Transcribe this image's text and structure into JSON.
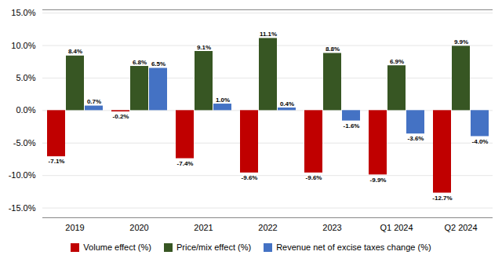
{
  "chart_data": {
    "type": "bar",
    "categories": [
      "2019",
      "2020",
      "2021",
      "2022",
      "2023",
      "Q1 2024",
      "Q2 2024"
    ],
    "series": [
      {
        "name": "Volume effect (%)",
        "color": "#C00000",
        "values": [
          -7.1,
          -0.2,
          -7.4,
          -9.6,
          -9.6,
          -9.9,
          -12.7
        ],
        "value_labels": [
          "-7.1%",
          "-0.2%",
          "-7.4%",
          "-9.6%",
          "-9.6%",
          "-9.9%",
          "-12.7%"
        ]
      },
      {
        "name": "Price/mix effect (%)",
        "color": "#375623",
        "values": [
          8.4,
          6.8,
          9.1,
          11.1,
          8.8,
          6.9,
          9.9
        ],
        "value_labels": [
          "8.4%",
          "6.8%",
          "9.1%",
          "11.1%",
          "8.8%",
          "6.9%",
          "9.9%"
        ]
      },
      {
        "name": "Revenue net of excise taxes change (%)",
        "color": "#4472C4",
        "values": [
          0.7,
          6.5,
          1.0,
          0.4,
          -1.6,
          -3.6,
          -4.0
        ],
        "value_labels": [
          "0.7%",
          "6.5%",
          "1.0%",
          "0.4%",
          "-1.6%",
          "-3.6%",
          "-4.0%"
        ]
      }
    ],
    "ylim": [
      -16.5,
      15.5
    ],
    "yticks": [
      {
        "value": -15.0,
        "label": "-15.0%"
      },
      {
        "value": -10.0,
        "label": "-10.0%"
      },
      {
        "value": -5.0,
        "label": "-5.0%"
      },
      {
        "value": 0.0,
        "label": "0.0%"
      },
      {
        "value": 5.0,
        "label": "5.0%"
      },
      {
        "value": 10.0,
        "label": "10.0%"
      },
      {
        "value": 15.0,
        "label": "15.0%"
      }
    ],
    "grid": true,
    "legend": "bottom",
    "data_labels": true
  }
}
